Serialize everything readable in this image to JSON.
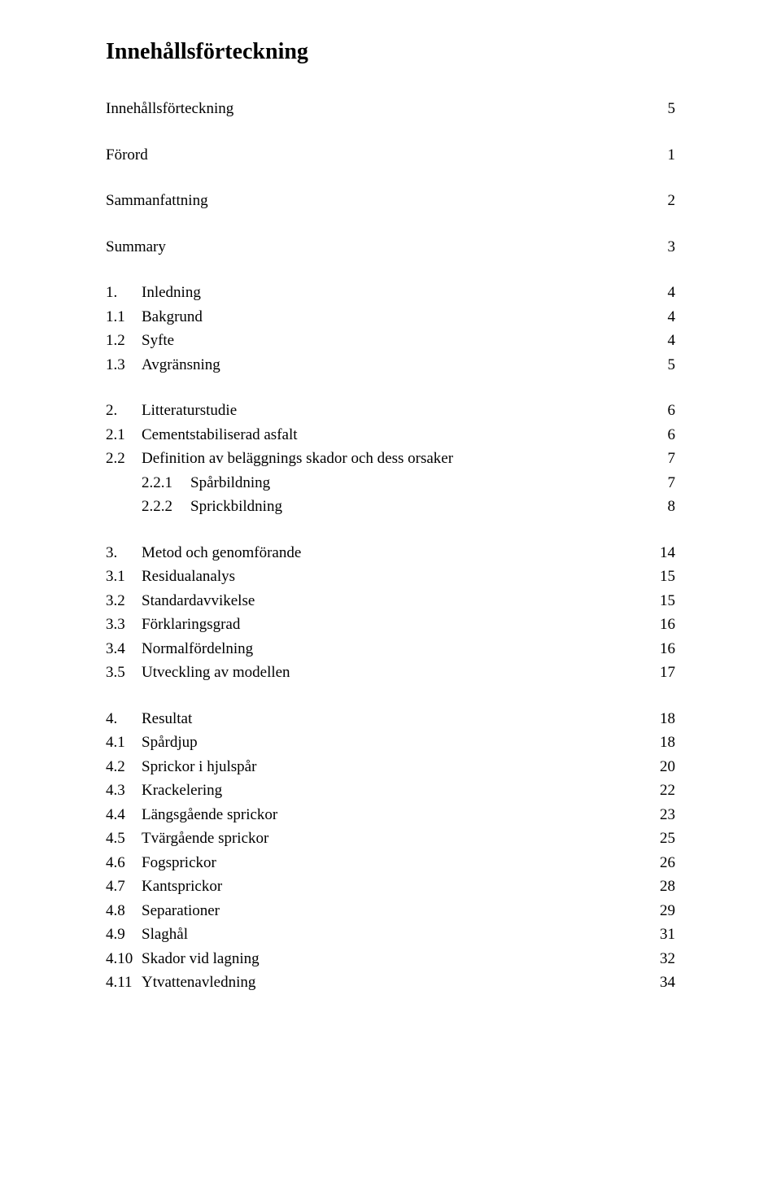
{
  "title": "Innehållsförteckning",
  "colors": {
    "text": "#000000",
    "background": "#ffffff"
  },
  "typography": {
    "font_family": "Times New Roman",
    "body_size_pt": 14,
    "title_size_pt": 21,
    "title_weight": "bold"
  },
  "entries": [
    {
      "level": 0,
      "num": "",
      "label": "Innehållsförteckning",
      "page": "5"
    },
    {
      "level": 0,
      "num": "",
      "label": "Förord",
      "page": "1"
    },
    {
      "level": 0,
      "num": "",
      "label": "Sammanfattning",
      "page": "2"
    },
    {
      "level": 0,
      "num": "",
      "label": "Summary",
      "page": "3"
    },
    {
      "level": 1,
      "num": "1.",
      "label": "Inledning",
      "page": "4",
      "group_start": true
    },
    {
      "level": 1,
      "num": "1.1",
      "label": "Bakgrund",
      "page": "4"
    },
    {
      "level": 1,
      "num": "1.2",
      "label": "Syfte",
      "page": "4"
    },
    {
      "level": 1,
      "num": "1.3",
      "label": "Avgränsning",
      "page": "5",
      "group_end": true
    },
    {
      "level": 1,
      "num": "2.",
      "label": "Litteraturstudie",
      "page": "6",
      "group_start": true
    },
    {
      "level": 1,
      "num": "2.1",
      "label": "Cementstabiliserad asfalt",
      "page": "6"
    },
    {
      "level": 1,
      "num": "2.2",
      "label": "Definition av beläggnings skador och dess orsaker",
      "page": "7"
    },
    {
      "level": 2,
      "num": "2.2.1",
      "label": "Spårbildning",
      "page": "7"
    },
    {
      "level": 2,
      "num": "2.2.2",
      "label": "Sprickbildning",
      "page": "8",
      "group_end": true
    },
    {
      "level": 1,
      "num": "3.",
      "label": "Metod och genomförande",
      "page": "14",
      "group_start": true
    },
    {
      "level": 1,
      "num": "3.1",
      "label": "Residualanalys",
      "page": "15"
    },
    {
      "level": 1,
      "num": "3.2",
      "label": "Standardavvikelse",
      "page": "15"
    },
    {
      "level": 1,
      "num": "3.3",
      "label": "Förklaringsgrad",
      "page": "16"
    },
    {
      "level": 1,
      "num": "3.4",
      "label": "Normalfördelning",
      "page": "16"
    },
    {
      "level": 1,
      "num": "3.5",
      "label": "Utveckling av modellen",
      "page": "17",
      "group_end": true
    },
    {
      "level": 1,
      "num": "4.",
      "label": "Resultat",
      "page": "18",
      "group_start": true
    },
    {
      "level": 1,
      "num": "4.1",
      "label": "Spårdjup",
      "page": "18"
    },
    {
      "level": 1,
      "num": "4.2",
      "label": "Sprickor i hjulspår",
      "page": "20"
    },
    {
      "level": 1,
      "num": "4.3",
      "label": "Krackelering",
      "page": "22"
    },
    {
      "level": 1,
      "num": "4.4",
      "label": "Längsgående sprickor",
      "page": "23"
    },
    {
      "level": 1,
      "num": "4.5",
      "label": "Tvärgående sprickor",
      "page": "25"
    },
    {
      "level": 1,
      "num": "4.6",
      "label": "Fogsprickor",
      "page": "26"
    },
    {
      "level": 1,
      "num": "4.7",
      "label": "Kantsprickor",
      "page": "28"
    },
    {
      "level": 1,
      "num": "4.8",
      "label": "Separationer",
      "page": "29"
    },
    {
      "level": 1,
      "num": "4.9",
      "label": "Slaghål",
      "page": "31"
    },
    {
      "level": 1,
      "num": "4.10",
      "label": "Skador vid lagning",
      "page": "32"
    },
    {
      "level": 1,
      "num": "4.11",
      "label": "Ytvattenavledning",
      "page": "34",
      "group_end": true
    }
  ]
}
